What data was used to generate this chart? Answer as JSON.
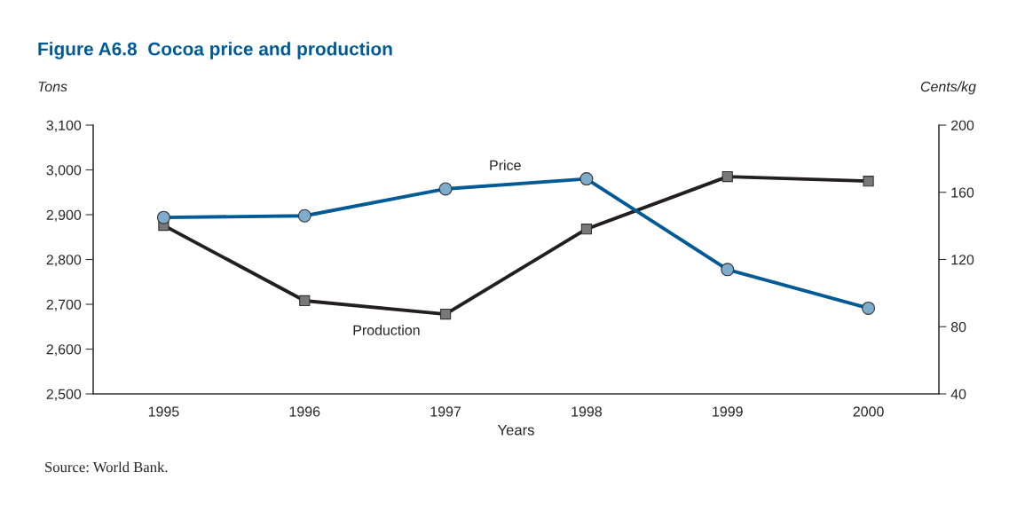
{
  "chart_data": {
    "type": "line",
    "title": "Figure A6.8  Cocoa price and production",
    "xlabel": "Years",
    "ylabel": "Tons",
    "y2label": "Cents/kg",
    "categories": [
      "1995",
      "1996",
      "1997",
      "1998",
      "1999",
      "2000"
    ],
    "series": [
      {
        "name": "Production",
        "color": "#231f20",
        "marker": "square",
        "values": [
          2876,
          2708,
          2678,
          2868,
          2985,
          2975
        ]
      },
      {
        "name": "Price",
        "color": "#005a96",
        "marker": "circle",
        "axis": "y2",
        "values": [
          145,
          146,
          162,
          168,
          114,
          91
        ]
      }
    ],
    "ylim": [
      2500,
      3100
    ],
    "yticks": [
      {
        "value": 2500,
        "label": "2,500"
      },
      {
        "value": 2600,
        "label": "2,600"
      },
      {
        "value": 2700,
        "label": "2,700"
      },
      {
        "value": 2800,
        "label": "2,800"
      },
      {
        "value": 2900,
        "label": "2,900"
      },
      {
        "value": 3000,
        "label": "3,000"
      },
      {
        "value": 3100,
        "label": "3,100"
      }
    ],
    "y2lim": [
      40,
      200
    ],
    "y2ticks": [
      40,
      80,
      120,
      160,
      200
    ],
    "annotations": [
      "Source: World Bank."
    ],
    "legend": false,
    "grid": false,
    "line_style": "solid"
  }
}
